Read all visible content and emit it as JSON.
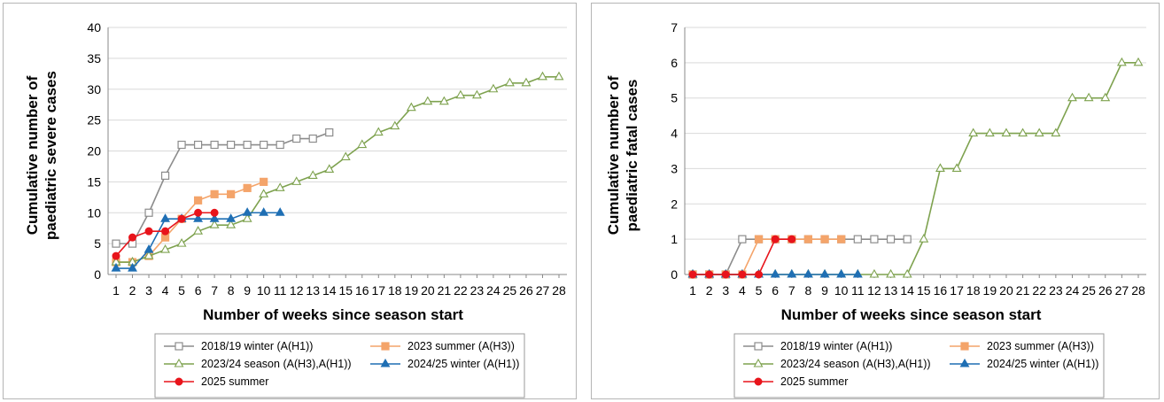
{
  "chart_data": [
    {
      "type": "line",
      "xlabel": "Number of weeks since season start",
      "ylabel": [
        "Cumulative number of",
        "paediatric severe cases"
      ],
      "ylim": [
        0,
        40
      ],
      "yticks": [
        0,
        5,
        10,
        15,
        20,
        25,
        30,
        35,
        40
      ],
      "xlim": [
        1,
        28
      ],
      "xticks": [
        1,
        2,
        3,
        4,
        5,
        6,
        7,
        8,
        9,
        10,
        11,
        12,
        13,
        14,
        15,
        16,
        17,
        18,
        19,
        20,
        21,
        22,
        23,
        24,
        25,
        26,
        27,
        28
      ],
      "grid": "horizontal",
      "legend_position": "bottom",
      "series": [
        {
          "name": "2018/19 winter (A(H1))",
          "color": "#8c8c8c",
          "marker": "open-square",
          "x": [
            1,
            2,
            3,
            4,
            5,
            6,
            7,
            8,
            9,
            10,
            11,
            12,
            13,
            14
          ],
          "values": [
            5,
            5,
            10,
            16,
            21,
            21,
            21,
            21,
            21,
            21,
            21,
            22,
            22,
            23
          ]
        },
        {
          "name": "2023 summer (A(H3))",
          "color": "#f4a46a",
          "marker": "filled-square",
          "x": [
            1,
            2,
            3,
            4,
            5,
            6,
            7,
            8,
            9,
            10
          ],
          "values": [
            2,
            2,
            3,
            6,
            9,
            12,
            13,
            13,
            14,
            15
          ]
        },
        {
          "name": "2023/24 season (A(H3),A(H1))",
          "color": "#7ea24f",
          "marker": "open-triangle",
          "x": [
            1,
            2,
            3,
            4,
            5,
            6,
            7,
            8,
            9,
            10,
            11,
            12,
            13,
            14,
            15,
            16,
            17,
            18,
            19,
            20,
            21,
            22,
            23,
            24,
            25,
            26,
            27,
            28
          ],
          "values": [
            2,
            2,
            3,
            4,
            5,
            7,
            8,
            8,
            9,
            13,
            14,
            15,
            16,
            17,
            19,
            21,
            23,
            24,
            27,
            28,
            28,
            29,
            29,
            30,
            31,
            31,
            32,
            32
          ]
        },
        {
          "name": "2024/25 winter (A(H1))",
          "color": "#1f6fb4",
          "marker": "filled-triangle",
          "x": [
            1,
            2,
            3,
            4,
            5,
            6,
            7,
            8,
            9,
            10,
            11
          ],
          "values": [
            1,
            1,
            4,
            9,
            9,
            9,
            9,
            9,
            10,
            10,
            10
          ]
        },
        {
          "name": "2025 summer",
          "color": "#e8141b",
          "marker": "filled-circle",
          "x": [
            1,
            2,
            3,
            4,
            5,
            6,
            7
          ],
          "values": [
            3,
            6,
            7,
            7,
            9,
            10,
            10
          ]
        }
      ]
    },
    {
      "type": "line",
      "xlabel": "Number of weeks since season start",
      "ylabel": [
        "Cumulative number of",
        "paediatric fatal cases"
      ],
      "ylim": [
        0,
        7
      ],
      "yticks": [
        0,
        1,
        2,
        3,
        4,
        5,
        6,
        7
      ],
      "xlim": [
        1,
        28
      ],
      "xticks": [
        1,
        2,
        3,
        4,
        5,
        6,
        7,
        8,
        9,
        10,
        11,
        12,
        13,
        14,
        15,
        16,
        17,
        18,
        19,
        20,
        21,
        22,
        23,
        24,
        25,
        26,
        27,
        28
      ],
      "grid": "horizontal",
      "legend_position": "bottom",
      "series": [
        {
          "name": "2018/19 winter (A(H1))",
          "color": "#8c8c8c",
          "marker": "open-square",
          "x": [
            1,
            2,
            3,
            4,
            5,
            6,
            7,
            8,
            9,
            10,
            11,
            12,
            13,
            14
          ],
          "values": [
            0,
            0,
            0,
            1,
            1,
            1,
            1,
            1,
            1,
            1,
            1,
            1,
            1,
            1
          ]
        },
        {
          "name": "2023 summer (A(H3))",
          "color": "#f4a46a",
          "marker": "filled-square",
          "x": [
            1,
            2,
            3,
            4,
            5,
            6,
            7,
            8,
            9,
            10
          ],
          "values": [
            0,
            0,
            0,
            0,
            1,
            1,
            1,
            1,
            1,
            1
          ]
        },
        {
          "name": "2023/24 season (A(H3),A(H1))",
          "color": "#7ea24f",
          "marker": "open-triangle",
          "x": [
            1,
            2,
            3,
            4,
            5,
            6,
            7,
            8,
            9,
            10,
            11,
            12,
            13,
            14,
            15,
            16,
            17,
            18,
            19,
            20,
            21,
            22,
            23,
            24,
            25,
            26,
            27,
            28
          ],
          "values": [
            0,
            0,
            0,
            0,
            0,
            0,
            0,
            0,
            0,
            0,
            0,
            0,
            0,
            0,
            1,
            3,
            3,
            4,
            4,
            4,
            4,
            4,
            4,
            5,
            5,
            5,
            6,
            6
          ]
        },
        {
          "name": "2024/25 winter (A(H1))",
          "color": "#1f6fb4",
          "marker": "filled-triangle",
          "x": [
            1,
            2,
            3,
            4,
            5,
            6,
            7,
            8,
            9,
            10,
            11
          ],
          "values": [
            0,
            0,
            0,
            0,
            0,
            0,
            0,
            0,
            0,
            0,
            0
          ]
        },
        {
          "name": "2025 summer",
          "color": "#e8141b",
          "marker": "filled-circle",
          "x": [
            1,
            2,
            3,
            4,
            5,
            6,
            7
          ],
          "values": [
            0,
            0,
            0,
            0,
            0,
            1,
            1
          ]
        }
      ]
    }
  ]
}
